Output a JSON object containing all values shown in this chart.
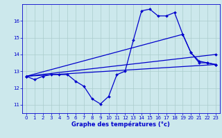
{
  "xlabel": "Graphe des températures (°c)",
  "bg_color": "#cce8ec",
  "line_color": "#0000cc",
  "grid_color": "#aacccc",
  "xlim": [
    -0.5,
    23.5
  ],
  "ylim": [
    10.5,
    17.0
  ],
  "yticks": [
    11,
    12,
    13,
    14,
    15,
    16
  ],
  "xticks": [
    0,
    1,
    2,
    3,
    4,
    5,
    6,
    7,
    8,
    9,
    10,
    11,
    12,
    13,
    14,
    15,
    16,
    17,
    18,
    19,
    20,
    21,
    22,
    23
  ],
  "line1": {
    "x": [
      0,
      1,
      2,
      3,
      4,
      5,
      6,
      7,
      8,
      9,
      10,
      11,
      12,
      13,
      14,
      15,
      16,
      17,
      18,
      19,
      20,
      21,
      22,
      23
    ],
    "y": [
      12.7,
      12.5,
      12.7,
      12.8,
      12.8,
      12.8,
      12.4,
      12.1,
      11.35,
      11.05,
      11.5,
      12.8,
      13.0,
      14.85,
      16.6,
      16.7,
      16.3,
      16.3,
      16.5,
      15.2,
      14.1,
      13.5,
      13.5,
      13.4
    ]
  },
  "line2": {
    "x": [
      0,
      23
    ],
    "y": [
      12.7,
      13.4
    ]
  },
  "line3": {
    "x": [
      0,
      23
    ],
    "y": [
      12.7,
      14.0
    ]
  },
  "line4": {
    "x": [
      0,
      19,
      20,
      21,
      22,
      23
    ],
    "y": [
      12.7,
      15.2,
      14.1,
      13.6,
      13.5,
      13.4
    ]
  }
}
